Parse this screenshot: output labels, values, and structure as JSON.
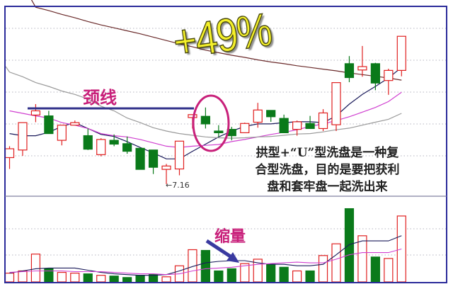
{
  "chart_data": {
    "type": "candlestick",
    "price_ylim": [
      6.89,
      11.38
    ],
    "volume_ylim": [
      0,
      117
    ],
    "grid": "dotted horizontal",
    "colors": {
      "up": "#e02020",
      "down": "#0a7a1a",
      "ma_short": "#1a1a5a",
      "ma_mid": "#d040d0",
      "ma_long": "#9a9a9a",
      "ma_longest": "#6a2a2a",
      "frame": "#2b2b9a",
      "neckline": "#30308a",
      "annotation": "#c8207a",
      "gain": "#f4f02a"
    },
    "candles": [
      {
        "o": 7.79,
        "h": 8.06,
        "l": 7.52,
        "c": 8.0
      },
      {
        "o": 7.97,
        "h": 8.62,
        "l": 7.83,
        "c": 8.62
      },
      {
        "o": 8.8,
        "h": 9.06,
        "l": 8.63,
        "c": 8.9
      },
      {
        "o": 8.78,
        "h": 8.9,
        "l": 8.36,
        "c": 8.36
      },
      {
        "o": 8.2,
        "h": 8.56,
        "l": 8.08,
        "c": 8.56
      },
      {
        "o": 8.56,
        "h": 8.67,
        "l": 8.56,
        "c": 8.62
      },
      {
        "o": 8.31,
        "h": 8.48,
        "l": 7.97,
        "c": 7.99
      },
      {
        "o": 7.86,
        "h": 8.25,
        "l": 7.82,
        "c": 8.22
      },
      {
        "o": 8.2,
        "h": 8.34,
        "l": 8.06,
        "c": 8.11
      },
      {
        "o": 8.12,
        "h": 8.29,
        "l": 7.88,
        "c": 7.94
      },
      {
        "o": 8.01,
        "h": 8.01,
        "l": 7.51,
        "c": 7.51
      },
      {
        "o": 7.97,
        "h": 7.97,
        "l": 7.4,
        "c": 7.56
      },
      {
        "o": 7.51,
        "h": 7.64,
        "l": 7.16,
        "c": 7.59
      },
      {
        "o": 7.52,
        "h": 8.18,
        "l": 7.37,
        "c": 8.18
      },
      {
        "o": 8.74,
        "h": 8.81,
        "l": 8.48,
        "c": 8.81
      },
      {
        "o": 8.77,
        "h": 8.98,
        "l": 8.48,
        "c": 8.59
      },
      {
        "o": 8.42,
        "h": 8.56,
        "l": 8.28,
        "c": 8.38
      },
      {
        "o": 8.46,
        "h": 8.52,
        "l": 8.2,
        "c": 8.31
      },
      {
        "o": 8.38,
        "h": 8.62,
        "l": 8.38,
        "c": 8.6
      },
      {
        "o": 8.63,
        "h": 9.09,
        "l": 8.5,
        "c": 8.92
      },
      {
        "o": 8.91,
        "h": 8.91,
        "l": 8.64,
        "c": 8.76
      },
      {
        "o": 8.72,
        "h": 8.81,
        "l": 8.38,
        "c": 8.38
      },
      {
        "o": 8.46,
        "h": 8.67,
        "l": 8.31,
        "c": 8.64
      },
      {
        "o": 8.6,
        "h": 8.78,
        "l": 8.48,
        "c": 8.48
      },
      {
        "o": 8.48,
        "h": 8.94,
        "l": 8.42,
        "c": 8.85
      },
      {
        "o": 8.57,
        "h": 9.57,
        "l": 8.42,
        "c": 9.57
      },
      {
        "o": 10.02,
        "h": 10.2,
        "l": 9.58,
        "c": 9.69
      },
      {
        "o": 9.87,
        "h": 10.44,
        "l": 9.71,
        "c": 9.95
      },
      {
        "o": 10.02,
        "h": 10.04,
        "l": 9.39,
        "c": 9.56
      },
      {
        "o": 9.62,
        "h": 9.9,
        "l": 9.28,
        "c": 9.86
      },
      {
        "o": 9.86,
        "h": 10.67,
        "l": 9.72,
        "c": 10.67
      }
    ],
    "price_ma": [
      {
        "color": "#1a1a5a",
        "values": [
          8.36,
          8.31,
          8.31,
          8.39,
          8.53,
          8.62,
          8.48,
          8.34,
          8.29,
          8.17,
          8.03,
          7.9,
          7.76,
          7.76,
          7.94,
          8.11,
          8.28,
          8.42,
          8.53,
          8.59,
          8.59,
          8.62,
          8.64,
          8.64,
          8.62,
          8.78,
          9.06,
          9.29,
          9.48,
          9.68,
          9.93
        ]
      },
      {
        "color": "#d040d0",
        "values": [
          8.9,
          8.84,
          8.78,
          8.73,
          8.62,
          8.56,
          8.48,
          8.36,
          8.31,
          8.28,
          8.22,
          8.14,
          8.06,
          8.03,
          8.06,
          8.08,
          8.1,
          8.17,
          8.22,
          8.28,
          8.34,
          8.39,
          8.45,
          8.53,
          8.59,
          8.67,
          8.76,
          8.87,
          8.98,
          9.12,
          9.34
        ]
      },
      {
        "color": "#9a9a9a",
        "values": [
          9.82,
          9.71,
          9.57,
          9.48,
          9.37,
          9.29,
          9.18,
          9.01,
          8.9,
          8.73,
          8.62,
          8.5,
          8.42,
          8.36,
          8.32,
          8.28,
          8.26,
          8.25,
          8.26,
          8.28,
          8.29,
          8.32,
          8.35,
          8.36,
          8.4,
          8.45,
          8.49,
          8.56,
          8.63,
          8.7,
          8.84
        ]
      },
      {
        "color": "#6a2a2a",
        "values": [
          null,
          null,
          11.36,
          11.28,
          11.19,
          11.11,
          11.02,
          10.94,
          10.87,
          10.8,
          10.73,
          10.65,
          10.57,
          10.49,
          10.42,
          10.34,
          10.28,
          10.22,
          10.17,
          10.11,
          10.06,
          10.02,
          9.97,
          9.93,
          9.89,
          9.85,
          9.8,
          9.76,
          9.72,
          9.68,
          9.63
        ]
      }
    ],
    "volume": [
      12,
      15,
      38,
      18,
      13,
      12,
      11,
      9,
      8,
      6,
      9,
      10,
      7,
      22,
      44,
      43,
      15,
      18,
      25,
      31,
      24,
      20,
      15,
      15,
      36,
      52,
      100,
      63,
      34,
      32,
      90
    ],
    "volume_ma": [
      {
        "color": "#1a1a5a",
        "values": [
          12,
          15,
          18,
          19,
          19,
          19,
          16,
          13,
          11,
          10,
          9,
          9,
          10,
          15,
          21,
          26,
          28,
          29,
          29,
          26,
          24,
          24,
          22,
          22,
          24,
          37,
          51,
          56,
          56,
          56,
          63
        ]
      },
      {
        "color": "#d040d0",
        "values": [
          13,
          14,
          15,
          15,
          15,
          14,
          14,
          14,
          13,
          12,
          11,
          11,
          10,
          11,
          15,
          18,
          19,
          20,
          22,
          24,
          25,
          26,
          27,
          26,
          26,
          31,
          37,
          40,
          40,
          40,
          45
        ]
      }
    ],
    "annotations": {
      "gain": "+49%",
      "neckline": "颈线",
      "low_label": "←7.16",
      "volume_note": "缩量",
      "description": [
        "拱型+“U”型洗盘是一种复",
        "合型洗盘，目的是要把获利",
        "盘和套牢盘一起洗出来"
      ]
    }
  }
}
